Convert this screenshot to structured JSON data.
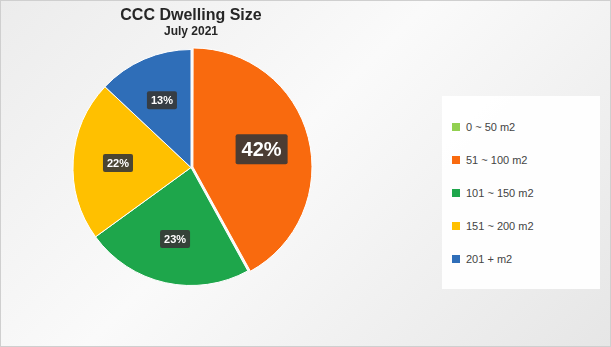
{
  "chart_data": {
    "type": "pie",
    "title": "CCC Dwelling Size",
    "subtitle": "July 2021",
    "categories": [
      "0 ~ 50 m2",
      "51 ~ 100 m2",
      "101 ~ 150 m2",
      "151 ~ 200 m2",
      "201 + m2"
    ],
    "values": [
      0,
      42,
      23,
      22,
      13
    ],
    "value_labels": [
      null,
      "42%",
      "23%",
      "22%",
      "13%"
    ],
    "colors": [
      "#92d050",
      "#f96a0e",
      "#1ea64b",
      "#ffc000",
      "#2f6eb8"
    ],
    "data_labels": true,
    "legend": "right"
  }
}
